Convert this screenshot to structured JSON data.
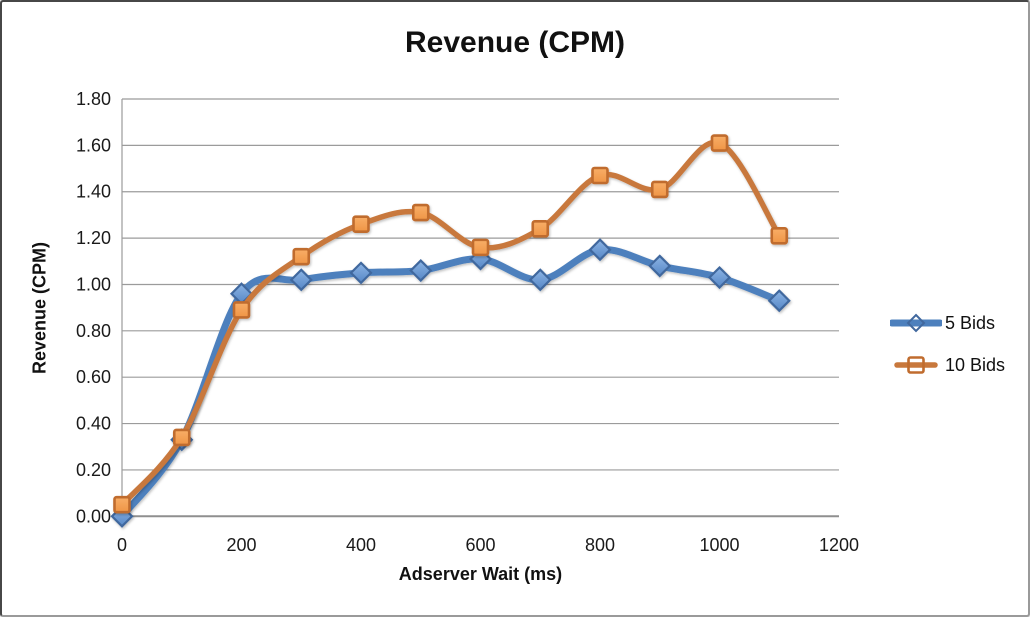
{
  "chart_data": {
    "type": "line",
    "title": "Revenue (CPM)",
    "xlabel": "Adserver Wait (ms)",
    "ylabel": "Revenue (CPM)",
    "x": [
      0,
      100,
      200,
      300,
      400,
      500,
      600,
      700,
      800,
      900,
      1000,
      1100
    ],
    "series": [
      {
        "name": "5 Bids",
        "marker": "diamond",
        "line_color": "#4d80bd",
        "marker_fill_top": "#8cb4e4",
        "marker_fill_bottom": "#5687c6",
        "marker_border": "#41689e",
        "values": [
          0.0,
          0.33,
          0.96,
          1.02,
          1.05,
          1.06,
          1.11,
          1.02,
          1.15,
          1.08,
          1.03,
          0.93
        ]
      },
      {
        "name": "10 Bids",
        "marker": "square",
        "line_color": "#c8783c",
        "marker_fill_top": "#f8ae67",
        "marker_fill_bottom": "#ef9546",
        "marker_border": "#c06c2e",
        "values": [
          0.05,
          0.34,
          0.89,
          1.12,
          1.26,
          1.31,
          1.16,
          1.24,
          1.47,
          1.41,
          1.61,
          1.21
        ]
      }
    ],
    "xlim": [
      0,
      1200
    ],
    "ylim": [
      0.0,
      1.8
    ],
    "x_ticks": [
      "0",
      "200",
      "400",
      "600",
      "800",
      "1000",
      "1200"
    ],
    "y_ticks": [
      "0.00",
      "0.20",
      "0.40",
      "0.60",
      "0.80",
      "1.00",
      "1.20",
      "1.40",
      "1.60",
      "1.80"
    ],
    "grid": true,
    "legend_position": "right",
    "grid_color": "#9b9b9b",
    "axis_color": "#8f8f8f",
    "text_color": "#1a1a1a"
  }
}
